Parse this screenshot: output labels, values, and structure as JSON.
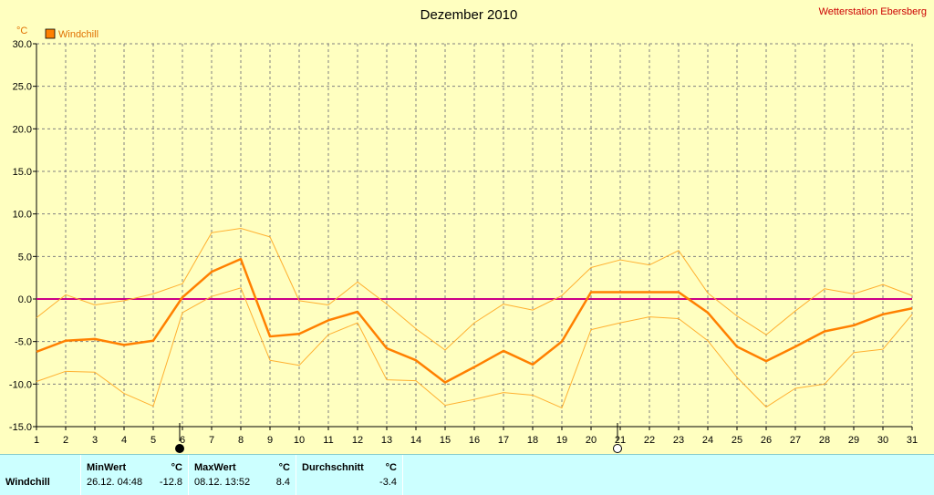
{
  "title": "Dezember 2010",
  "station": "Wetterstation Ebersberg",
  "unit": "°C",
  "colors": {
    "background": "#ffffc0",
    "windchill": "#ff8000",
    "range": "#ffb030",
    "zero_line": "#cc0088",
    "grid": "#808080",
    "station": "#cc0000",
    "panel": "#ccffff"
  },
  "moon_markers": [
    {
      "day": 6,
      "phase": "new-moon"
    },
    {
      "day": 21,
      "phase": "full-moon"
    }
  ],
  "chart_data": {
    "type": "line",
    "title": "Dezember 2010",
    "xlabel": "",
    "ylabel": "°C",
    "xlim": [
      1,
      31
    ],
    "ylim": [
      -15,
      30
    ],
    "y_ticks": [
      "30.0",
      "25.0",
      "20.0",
      "15.0",
      "10.0",
      "5.0",
      "0.0",
      "-5.0",
      "-10.0",
      "-15.0"
    ],
    "x": [
      1,
      2,
      3,
      4,
      5,
      6,
      7,
      8,
      9,
      10,
      11,
      12,
      13,
      14,
      15,
      16,
      17,
      18,
      19,
      20,
      21,
      22,
      23,
      24,
      25,
      26,
      27,
      28,
      29,
      30,
      31
    ],
    "legend": [
      "Windchill"
    ],
    "grid": true,
    "series": [
      {
        "name": "Windchill",
        "values": [
          -6.2,
          -4.9,
          -4.7,
          -5.4,
          -4.9,
          0.2,
          3.2,
          4.7,
          -4.4,
          -4.1,
          -2.5,
          -1.5,
          -5.8,
          -7.2,
          -9.8,
          -8.0,
          -6.1,
          -7.7,
          -5.0,
          0.8,
          0.8,
          0.8,
          0.8,
          -1.6,
          -5.6,
          -7.3,
          -5.6,
          -3.8,
          -3.1,
          -1.8,
          -1.1
        ]
      },
      {
        "values": [
          -2.2,
          0.5,
          -0.7,
          -0.2,
          0.6,
          1.8,
          7.8,
          8.3,
          7.3,
          -0.2,
          -0.7,
          2.0,
          -0.6,
          -3.5,
          -6.0,
          -2.8,
          -0.6,
          -1.3,
          0.4,
          3.7,
          4.6,
          4.0,
          5.7,
          0.7,
          -2.0,
          -4.2,
          -1.4,
          1.2,
          0.6,
          1.7,
          0.4
        ]
      },
      {
        "values": [
          -9.7,
          -8.5,
          -8.6,
          -11.1,
          -12.6,
          -1.6,
          0.3,
          1.3,
          -7.2,
          -7.8,
          -4.2,
          -2.8,
          -9.5,
          -9.6,
          -12.5,
          -11.8,
          -11.0,
          -11.3,
          -12.8,
          -3.6,
          -2.8,
          -2.1,
          -2.3,
          -4.9,
          -9.2,
          -12.7,
          -10.5,
          -10.0,
          -6.3,
          -5.9,
          -1.8
        ]
      }
    ]
  },
  "stats": {
    "row_label": "Windchill",
    "min": {
      "header": "MinWert",
      "unit": "°C",
      "datetime": "26.12.  04:48",
      "value": "-12.8"
    },
    "max": {
      "header": "MaxWert",
      "unit": "°C",
      "datetime": "08.12.  13:52",
      "value": "8.4"
    },
    "avg": {
      "header": "Durchschnitt",
      "unit": "°C",
      "value": "-3.4"
    }
  }
}
